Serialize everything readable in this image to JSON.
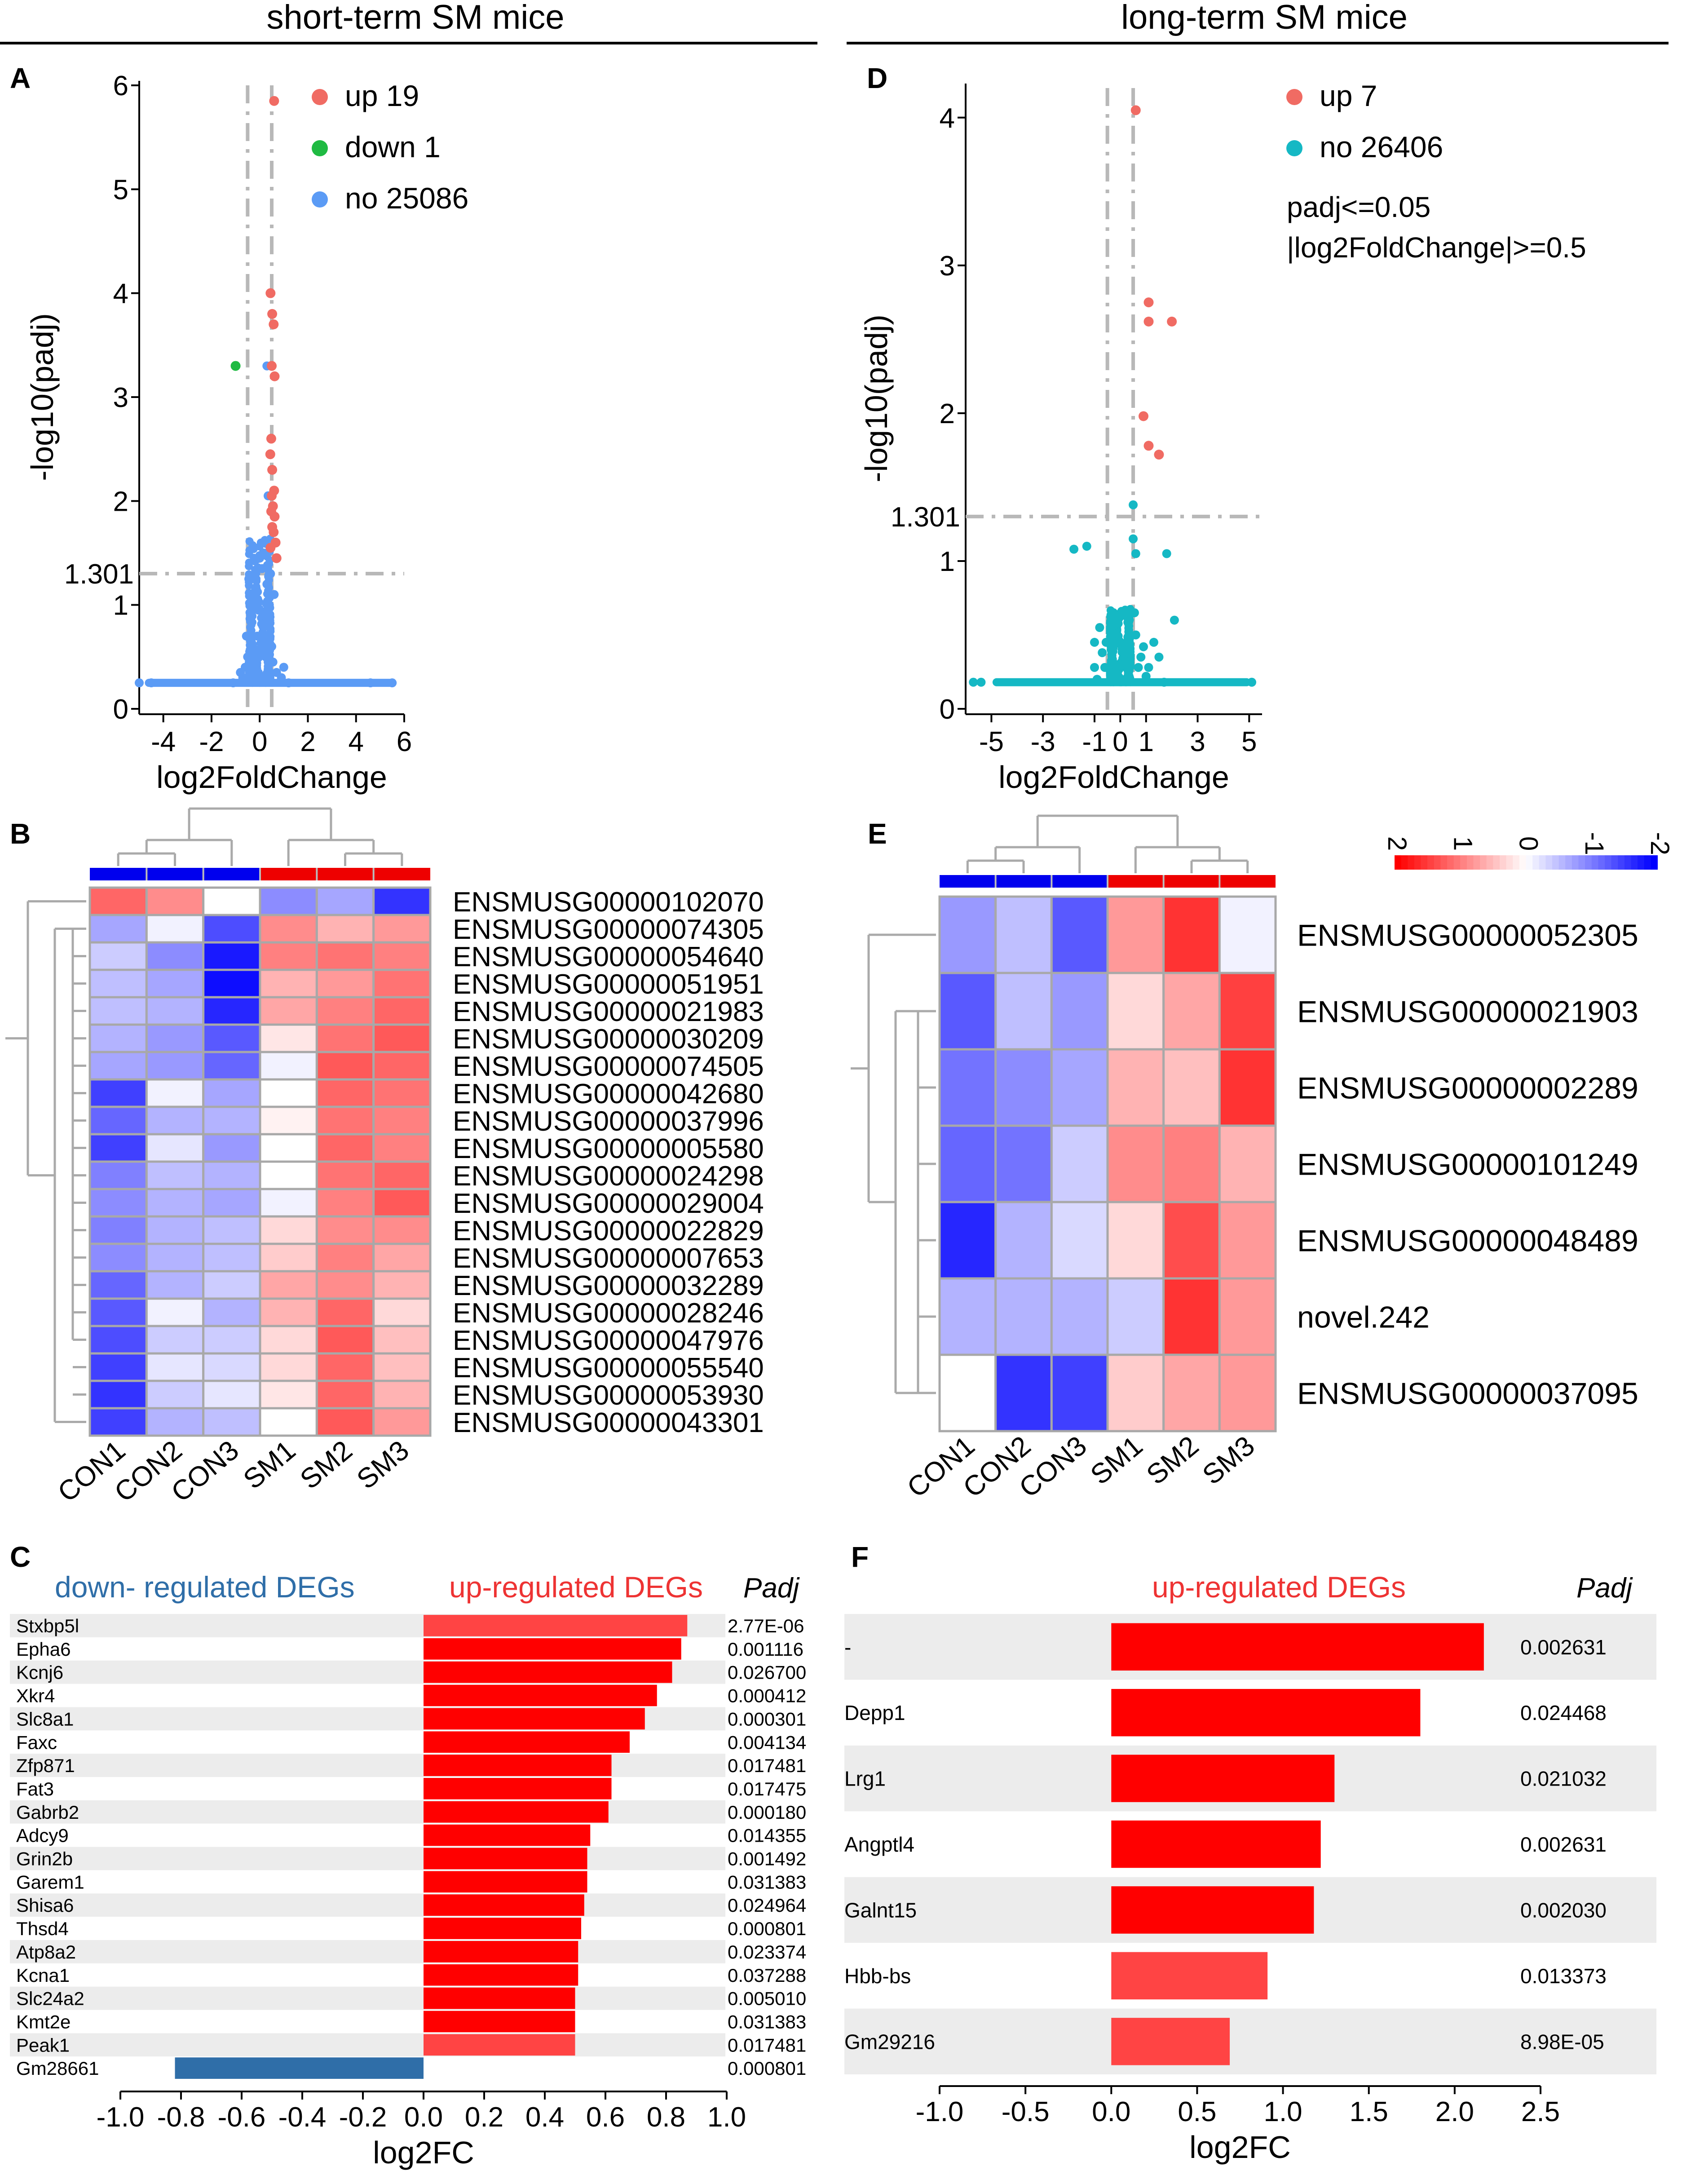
{
  "colors": {
    "up": "#f06b63",
    "down": "#1fba42",
    "no_short": "#5b9bf5",
    "no_long": "#15b8c4",
    "bar_up": "#ff0000",
    "bar_up_light": "#ff4444",
    "bar_down": "#2f6ea8",
    "con_bar": "#0000ee",
    "sm_bar": "#ee0000",
    "stripe": "#ececec",
    "dash": "#b8b8b8"
  },
  "panel_titles": {
    "left": "short-term SM mice",
    "right": "long-term SM mice"
  },
  "chart_data": [
    {
      "id": "A",
      "type": "scatter",
      "letter": "A",
      "title": "short-term SM mice",
      "xlabel": "log2FoldChange",
      "ylabel": "-log10(padj)",
      "xlim": [
        -5,
        6
      ],
      "ylim": [
        0,
        6
      ],
      "xticks": [
        -4,
        -2,
        0,
        2,
        4,
        6
      ],
      "yticks": [
        0,
        1,
        2,
        3,
        4,
        5,
        6
      ],
      "threshold_y": 1.301,
      "threshold_label": "1.301",
      "threshold_x": [
        -0.5,
        0.5
      ],
      "legend": [
        {
          "label": "up 19",
          "color_key": "up"
        },
        {
          "label": "down 1",
          "color_key": "down"
        },
        {
          "label": "no 25086",
          "color_key": "no_short"
        }
      ],
      "points_up": [
        [
          0.6,
          5.85
        ],
        [
          0.45,
          4.0
        ],
        [
          0.52,
          3.8
        ],
        [
          0.58,
          3.7
        ],
        [
          0.62,
          3.2
        ],
        [
          0.5,
          3.3
        ],
        [
          0.48,
          2.6
        ],
        [
          0.44,
          2.45
        ],
        [
          0.52,
          2.3
        ],
        [
          0.6,
          2.1
        ],
        [
          0.5,
          2.05
        ],
        [
          0.55,
          1.95
        ],
        [
          0.62,
          1.85
        ],
        [
          0.48,
          1.9
        ],
        [
          0.66,
          1.6
        ],
        [
          0.7,
          1.45
        ],
        [
          0.58,
          1.7
        ],
        [
          0.52,
          1.75
        ],
        [
          0.45,
          1.55
        ]
      ],
      "points_down": [
        [
          -1.0,
          3.3
        ]
      ],
      "points_no": [
        [
          -0.2,
          1.3
        ],
        [
          0.3,
          1.2
        ],
        [
          -0.4,
          1.1
        ],
        [
          0.2,
          0.9
        ],
        [
          -0.1,
          0.7
        ],
        [
          0.15,
          1.5
        ],
        [
          -0.3,
          0.6
        ],
        [
          0.35,
          0.8
        ],
        [
          -0.5,
          0.5
        ],
        [
          0.5,
          0.6
        ],
        [
          -0.6,
          0.4
        ],
        [
          0.7,
          0.35
        ],
        [
          -0.25,
          1.0
        ],
        [
          0.1,
          1.35
        ],
        [
          0.25,
          0.5
        ],
        [
          -0.35,
          0.9
        ],
        [
          0.4,
          1.0
        ],
        [
          -0.15,
          0.4
        ],
        [
          0.05,
          0.3
        ],
        [
          -0.7,
          0.3
        ],
        [
          0.9,
          0.3
        ],
        [
          -1.1,
          0.25
        ],
        [
          1.2,
          0.25
        ],
        [
          0.6,
          1.1
        ],
        [
          -0.45,
          1.25
        ],
        [
          0.45,
          1.3
        ],
        [
          0.3,
          3.3
        ],
        [
          0.35,
          2.05
        ],
        [
          -0.55,
          0.7
        ],
        [
          0.55,
          0.45
        ],
        [
          -0.8,
          0.35
        ],
        [
          1.0,
          0.4
        ],
        [
          -5,
          0.25
        ],
        [
          5.5,
          0.25
        ],
        [
          -4.5,
          0.25
        ],
        [
          4.6,
          0.25
        ],
        [
          0.0,
          1.45
        ],
        [
          -0.05,
          0.95
        ],
        [
          0.12,
          0.65
        ],
        [
          -0.18,
          0.55
        ]
      ],
      "baseline_y": 0.25,
      "baseline_range": [
        -4.6,
        5.5
      ]
    },
    {
      "id": "D",
      "type": "scatter",
      "letter": "D",
      "title": "long-term SM mice",
      "xlabel": "log2FoldChange",
      "ylabel": "-log10(padj)",
      "xlim": [
        -6,
        5.5
      ],
      "ylim": [
        0,
        4.2
      ],
      "xticks": [
        -5,
        -3,
        -1,
        0,
        1,
        3,
        5
      ],
      "xtick_labels": [
        "-5",
        "-3",
        "-1",
        "0",
        "1",
        "3",
        "5"
      ],
      "yticks": [
        0,
        1,
        2,
        3,
        4
      ],
      "threshold_y": 1.301,
      "threshold_label": "1.301",
      "threshold_x": [
        -0.5,
        0.5
      ],
      "legend": [
        {
          "label": "up 7",
          "color_key": "up"
        },
        {
          "label": "no 26406",
          "color_key": "no_long"
        }
      ],
      "annotation": [
        "padj<=0.05",
        "|log2FoldChange|>=0.5"
      ],
      "points_up": [
        [
          0.6,
          4.05
        ],
        [
          1.1,
          2.75
        ],
        [
          1.1,
          2.62
        ],
        [
          2.0,
          2.62
        ],
        [
          0.9,
          1.98
        ],
        [
          1.1,
          1.78
        ],
        [
          1.5,
          1.72
        ]
      ],
      "points_no": [
        [
          0.5,
          1.38
        ],
        [
          -1.3,
          1.1
        ],
        [
          -1.8,
          1.08
        ],
        [
          0.6,
          1.05
        ],
        [
          1.8,
          1.05
        ],
        [
          -0.8,
          0.55
        ],
        [
          -1.0,
          0.45
        ],
        [
          -0.7,
          0.38
        ],
        [
          0.6,
          0.5
        ],
        [
          0.9,
          0.42
        ],
        [
          1.3,
          0.45
        ],
        [
          2.1,
          0.6
        ],
        [
          -1.0,
          0.28
        ],
        [
          -0.6,
          0.28
        ],
        [
          0.7,
          0.28
        ],
        [
          1.1,
          0.28
        ],
        [
          -5.7,
          0.18
        ],
        [
          -5.4,
          0.18
        ],
        [
          5.1,
          0.18
        ],
        [
          0.8,
          0.35
        ],
        [
          1.5,
          0.35
        ],
        [
          -0.9,
          0.2
        ],
        [
          1.7,
          0.18
        ],
        [
          0.5,
          1.15
        ],
        [
          0.55,
          0.65
        ],
        [
          1.0,
          0.22
        ],
        [
          -0.55,
          0.45
        ]
      ],
      "baseline_y": 0.18,
      "baseline_range": [
        -4.8,
        4.9
      ]
    },
    {
      "id": "B",
      "type": "heatmap",
      "letter": "B",
      "columns": [
        "CON1",
        "CON2",
        "CON3",
        "SM1",
        "SM2",
        "SM3"
      ],
      "rows": [
        "ENSMUSG00000102070",
        "ENSMUSG00000074305",
        "ENSMUSG00000054640",
        "ENSMUSG00000051951",
        "ENSMUSG00000021983",
        "ENSMUSG00000030209",
        "ENSMUSG00000074505",
        "ENSMUSG00000042680",
        "ENSMUSG00000037996",
        "ENSMUSG00000005580",
        "ENSMUSG00000024298",
        "ENSMUSG00000029004",
        "ENSMUSG00000022829",
        "ENSMUSG00000007653",
        "ENSMUSG00000032289",
        "ENSMUSG00000028246",
        "ENSMUSG00000047976",
        "ENSMUSG00000055540",
        "ENSMUSG00000053930",
        "ENSMUSG00000043301"
      ],
      "values": [
        [
          1.2,
          0.9,
          0.0,
          -0.9,
          -0.7,
          -1.6
        ],
        [
          -0.7,
          -0.1,
          -1.4,
          0.9,
          0.6,
          0.8
        ],
        [
          -0.4,
          -0.9,
          -1.8,
          1.0,
          1.1,
          1.0
        ],
        [
          -0.5,
          -0.7,
          -1.9,
          0.6,
          0.8,
          1.1
        ],
        [
          -0.5,
          -0.6,
          -1.7,
          0.7,
          1.0,
          1.2
        ],
        [
          -0.6,
          -0.8,
          -1.3,
          0.2,
          1.1,
          1.3
        ],
        [
          -0.7,
          -0.8,
          -1.2,
          -0.1,
          1.3,
          1.2
        ],
        [
          -1.5,
          -0.1,
          -0.7,
          0.0,
          1.2,
          1.1
        ],
        [
          -1.2,
          -0.6,
          -0.6,
          0.1,
          1.1,
          1.0
        ],
        [
          -1.5,
          -0.2,
          -0.8,
          0.0,
          1.2,
          1.0
        ],
        [
          -1.0,
          -0.5,
          -0.6,
          0.0,
          1.1,
          1.2
        ],
        [
          -0.9,
          -0.6,
          -0.7,
          -0.1,
          1.0,
          1.3
        ],
        [
          -1.0,
          -0.6,
          -0.5,
          0.3,
          0.9,
          0.9
        ],
        [
          -0.9,
          -0.6,
          -0.5,
          0.4,
          1.0,
          0.7
        ],
        [
          -1.2,
          -0.6,
          -0.4,
          0.7,
          0.9,
          0.6
        ],
        [
          -1.3,
          -0.1,
          -0.6,
          0.6,
          1.2,
          0.3
        ],
        [
          -1.4,
          -0.4,
          -0.4,
          0.3,
          1.3,
          0.5
        ],
        [
          -1.5,
          -0.2,
          -0.3,
          0.3,
          1.2,
          0.5
        ],
        [
          -1.6,
          -0.4,
          -0.2,
          0.2,
          1.2,
          0.6
        ],
        [
          -1.5,
          -0.6,
          -0.5,
          0.0,
          1.3,
          0.8
        ]
      ]
    },
    {
      "id": "E",
      "type": "heatmap",
      "letter": "E",
      "columns": [
        "CON1",
        "CON2",
        "CON3",
        "SM1",
        "SM2",
        "SM3"
      ],
      "rows": [
        "ENSMUSG00000052305",
        "ENSMUSG00000021903",
        "ENSMUSG00000002289",
        "ENSMUSG00000101249",
        "ENSMUSG00000048489",
        "novel.242",
        "ENSMUSG00000037095"
      ],
      "values": [
        [
          -0.8,
          -0.5,
          -1.3,
          0.8,
          1.6,
          -0.1
        ],
        [
          -1.3,
          -0.5,
          -0.8,
          0.3,
          0.7,
          1.5
        ],
        [
          -1.1,
          -0.9,
          -0.7,
          0.6,
          0.5,
          1.6
        ],
        [
          -1.2,
          -1.1,
          -0.4,
          0.9,
          1.0,
          0.6
        ],
        [
          -1.7,
          -0.6,
          -0.3,
          0.3,
          1.4,
          0.8
        ],
        [
          -0.6,
          -0.6,
          -0.6,
          -0.4,
          1.6,
          0.8
        ],
        [
          0.0,
          -1.6,
          -1.5,
          0.4,
          0.7,
          0.8
        ]
      ],
      "scale_ticks": [
        2,
        1,
        0,
        -1,
        -2
      ]
    },
    {
      "id": "C",
      "type": "bar",
      "letter": "C",
      "orientation": "horizontal",
      "header_down": "down- regulated DEGs",
      "header_up": "up-regulated DEGs",
      "padj_header": "Padj",
      "xlabel": "log2FC",
      "xlim": [
        -1.0,
        1.0
      ],
      "xticks": [
        -1.0,
        -0.8,
        -0.6,
        -0.4,
        -0.2,
        0.0,
        0.2,
        0.4,
        0.6,
        0.8,
        1.0
      ],
      "xtick_labels": [
        "-1.0",
        "-0.8",
        "-0.6",
        "-0.4",
        "-0.2",
        "0.0",
        "0.2",
        "0.4",
        "0.6",
        "0.8",
        "1.0"
      ],
      "categories": [
        "Stxbp5l",
        "Epha6",
        "Kcnj6",
        "Xkr4",
        "Slc8a1",
        "Faxc",
        "Zfp871",
        "Fat3",
        "Gabrb2",
        "Adcy9",
        "Grin2b",
        "Garem1",
        "Shisa6",
        "Thsd4",
        "Atp8a2",
        "Kcna1",
        "Slc24a2",
        "Kmt2e",
        "Peak1",
        "Gm28661"
      ],
      "values": [
        0.87,
        0.85,
        0.82,
        0.77,
        0.73,
        0.68,
        0.62,
        0.62,
        0.61,
        0.55,
        0.54,
        0.54,
        0.53,
        0.52,
        0.51,
        0.51,
        0.5,
        0.5,
        0.5,
        -0.82
      ],
      "padj": [
        "2.77E-06",
        "0.001116",
        "0.026700",
        "0.000412",
        "0.000301",
        "0.004134",
        "0.017481",
        "0.017475",
        "0.000180",
        "0.014355",
        "0.001492",
        "0.031383",
        "0.024964",
        "0.000801",
        "0.023374",
        "0.037288",
        "0.005010",
        "0.031383",
        "0.017481",
        "0.000801"
      ]
    },
    {
      "id": "F",
      "type": "bar",
      "letter": "F",
      "orientation": "horizontal",
      "header_up": "up-regulated DEGs",
      "padj_header": "Padj",
      "xlabel": "log2FC",
      "xlim": [
        -1.0,
        2.5
      ],
      "xticks": [
        -1.0,
        -0.5,
        0.0,
        0.5,
        1.0,
        1.5,
        2.0,
        2.5
      ],
      "xtick_labels": [
        "-1.0",
        "-0.5",
        "0.0",
        "0.5",
        "1.0",
        "1.5",
        "2.0",
        "2.5"
      ],
      "categories": [
        "-",
        "Depp1",
        "Lrg1",
        "Angptl4",
        "Galnt15",
        "Hbb-bs",
        "Gm29216"
      ],
      "values": [
        2.17,
        1.8,
        1.3,
        1.22,
        1.18,
        0.91,
        0.69
      ],
      "padj": [
        "0.002631",
        "0.024468",
        "0.021032",
        "0.002631",
        "0.002030",
        "0.013373",
        "8.98E-05"
      ]
    }
  ]
}
